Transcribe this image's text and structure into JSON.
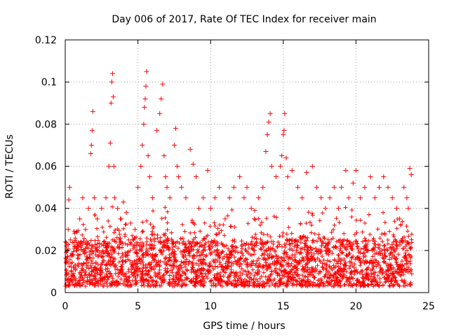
{
  "chart_data": {
    "type": "scatter",
    "title": "Day 006 of 2017, Rate Of TEC Index for receiver main",
    "xlabel": "GPS time / hours",
    "ylabel": "ROTI / TECUs",
    "xlim": [
      0,
      25
    ],
    "ylim": [
      0,
      0.12
    ],
    "xticks": [
      0,
      5,
      10,
      15,
      20,
      25
    ],
    "yticks": [
      0,
      0.02,
      0.04,
      0.06,
      0.08,
      0.1,
      0.12
    ],
    "xtick_labels": [
      "0",
      "5",
      "10",
      "15",
      "20",
      "25"
    ],
    "ytick_labels": [
      "0",
      "0.02",
      "0.04",
      "0.06",
      "0.08",
      "0.1",
      "0.12"
    ],
    "grid": true,
    "marker": "plus",
    "series": [
      {
        "name": "ROTI",
        "color": "#ff0000",
        "x": [
          0.1,
          0.2,
          0.25,
          0.3,
          0.35,
          0.5,
          0.6,
          0.8,
          1.0,
          1.2,
          1.4,
          1.6,
          1.75,
          1.8,
          1.85,
          1.9,
          2.0,
          2.2,
          2.5,
          2.8,
          3.0,
          3.1,
          3.15,
          3.2,
          3.25,
          3.3,
          3.35,
          3.4,
          3.6,
          3.8,
          4.0,
          4.2,
          4.5,
          4.8,
          5.0,
          5.2,
          5.3,
          5.4,
          5.45,
          5.5,
          5.55,
          5.6,
          5.7,
          5.8,
          6.0,
          6.3,
          6.5,
          6.6,
          6.7,
          6.8,
          6.9,
          7.0,
          7.2,
          7.5,
          7.6,
          7.7,
          7.8,
          8.0,
          8.3,
          8.6,
          8.8,
          9.0,
          9.2,
          9.5,
          9.8,
          10.0,
          10.3,
          10.6,
          11.0,
          11.3,
          11.6,
          12.0,
          12.3,
          12.5,
          12.8,
          13.0,
          13.3,
          13.6,
          13.8,
          13.9,
          14.0,
          14.1,
          14.2,
          14.5,
          14.8,
          14.9,
          15.0,
          15.05,
          15.1,
          15.2,
          15.3,
          15.6,
          16.0,
          16.3,
          16.6,
          17.0,
          17.3,
          17.6,
          17.9,
          18.2,
          18.5,
          18.8,
          19.0,
          19.3,
          19.5,
          19.8,
          20.0,
          20.3,
          20.6,
          21.0,
          21.3,
          21.6,
          21.9,
          22.2,
          22.5,
          22.8,
          23.0,
          23.3,
          23.5,
          23.6,
          23.7,
          23.8
        ],
        "y": [
          0.015,
          0.03,
          0.044,
          0.05,
          0.025,
          0.018,
          0.012,
          0.02,
          0.035,
          0.045,
          0.03,
          0.04,
          0.066,
          0.07,
          0.077,
          0.086,
          0.045,
          0.035,
          0.04,
          0.045,
          0.06,
          0.071,
          0.09,
          0.1,
          0.104,
          0.093,
          0.06,
          0.045,
          0.04,
          0.035,
          0.043,
          0.038,
          0.033,
          0.03,
          0.05,
          0.06,
          0.07,
          0.08,
          0.088,
          0.092,
          0.098,
          0.105,
          0.065,
          0.055,
          0.045,
          0.077,
          0.085,
          0.092,
          0.099,
          0.065,
          0.055,
          0.05,
          0.045,
          0.07,
          0.078,
          0.06,
          0.055,
          0.05,
          0.045,
          0.068,
          0.061,
          0.055,
          0.04,
          0.045,
          0.058,
          0.04,
          0.045,
          0.05,
          0.035,
          0.045,
          0.05,
          0.055,
          0.045,
          0.05,
          0.04,
          0.035,
          0.045,
          0.05,
          0.067,
          0.075,
          0.081,
          0.085,
          0.06,
          0.055,
          0.06,
          0.065,
          0.075,
          0.077,
          0.085,
          0.064,
          0.055,
          0.058,
          0.05,
          0.045,
          0.057,
          0.06,
          0.05,
          0.045,
          0.04,
          0.045,
          0.05,
          0.04,
          0.05,
          0.058,
          0.045,
          0.052,
          0.058,
          0.045,
          0.05,
          0.055,
          0.045,
          0.05,
          0.055,
          0.05,
          0.045,
          0.04,
          0.035,
          0.05,
          0.045,
          0.04,
          0.059,
          0.056
        ]
      }
    ]
  }
}
